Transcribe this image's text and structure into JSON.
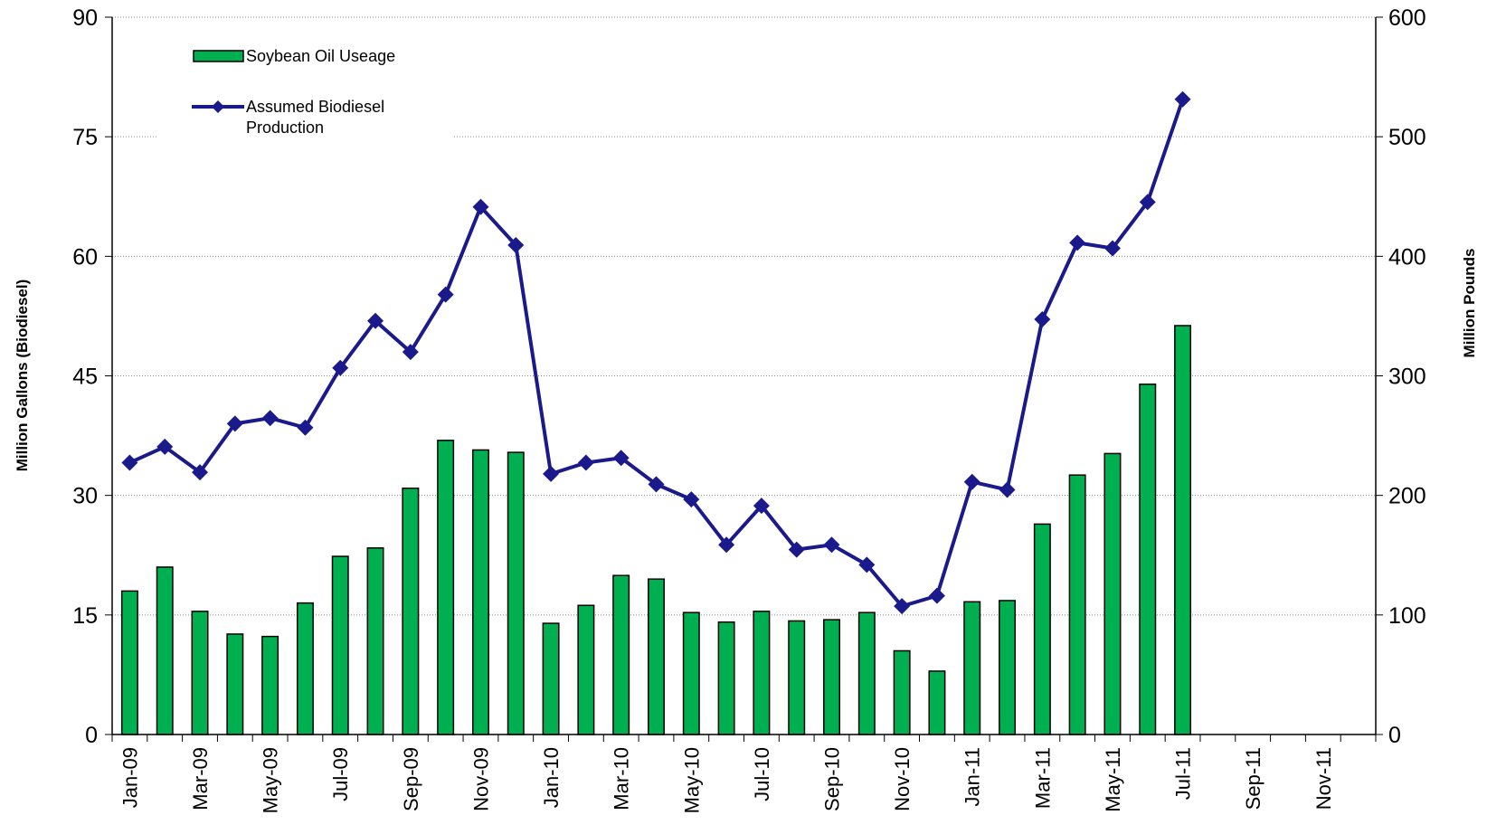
{
  "chart_data": {
    "type": "bar",
    "categories": [
      "Jan-09",
      null,
      "Mar-09",
      null,
      "May-09",
      null,
      "Jul-09",
      null,
      "Sep-09",
      null,
      "Nov-09",
      null,
      "Jan-10",
      null,
      "Mar-10",
      null,
      "May-10",
      null,
      "Jul-10",
      null,
      "Sep-10",
      null,
      "Nov-10",
      null,
      "Jan-11",
      null,
      "Mar-11",
      null,
      "May-11",
      null,
      "Jul-11",
      null,
      "Sep-11",
      null,
      "Nov-11",
      null
    ],
    "series": [
      {
        "name": "Soybean Oil Useage",
        "type": "bar",
        "axis": "y2",
        "color": "#00b050",
        "values": [
          120,
          140,
          103,
          84,
          82,
          110,
          149,
          156,
          206,
          246,
          238,
          236,
          93,
          108,
          133,
          130,
          102,
          94,
          103,
          95,
          96,
          102,
          70,
          53,
          111,
          112,
          176,
          217,
          235,
          293,
          342,
          null,
          null,
          null,
          null,
          null
        ]
      },
      {
        "name": "Assumed Biodiesel Production",
        "type": "line",
        "axis": "y",
        "color": "#1a1a8c",
        "values": [
          34.1,
          36.1,
          32.9,
          39.0,
          39.7,
          38.5,
          46.0,
          51.9,
          48.0,
          55.2,
          66.2,
          61.4,
          32.7,
          34.1,
          34.7,
          31.4,
          29.5,
          23.8,
          28.7,
          23.2,
          23.8,
          21.3,
          16.1,
          17.4,
          31.7,
          30.7,
          52.1,
          61.7,
          61.0,
          66.8,
          79.7,
          null,
          null,
          null,
          null,
          null
        ]
      }
    ],
    "ylabel": "Million Gallons (Biodiesel)",
    "y2label": "Million Pounds",
    "ylim": [
      0,
      90
    ],
    "yticks": [
      0,
      15,
      30,
      45,
      60,
      75,
      90
    ],
    "y2lim": [
      0,
      600
    ],
    "y2ticks": [
      0,
      100,
      200,
      300,
      400,
      500,
      600
    ],
    "grid": true,
    "legend": "upper left"
  }
}
